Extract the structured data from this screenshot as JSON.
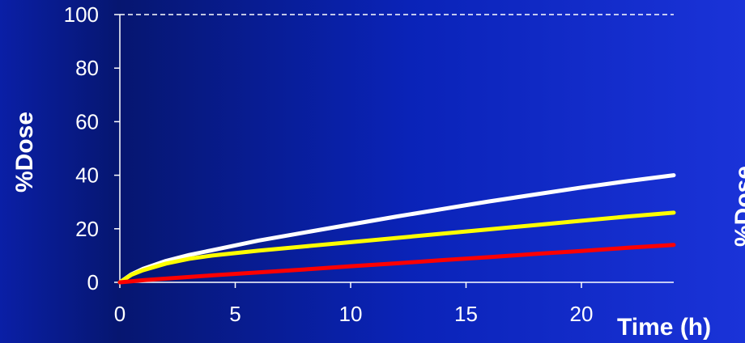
{
  "chart_data": {
    "type": "line",
    "title": "",
    "xlabel": "Time (h)",
    "ylabel": "%Dose",
    "ylim": [
      0,
      100
    ],
    "xlim": [
      0,
      24
    ],
    "xticks": [
      0,
      5,
      10,
      15,
      20
    ],
    "yticks": [
      0,
      20,
      40,
      60,
      80,
      100
    ],
    "reference_line": {
      "y": 100,
      "style": "dashed"
    },
    "grid": false,
    "legend": "none",
    "series": [
      {
        "color": "#ffffff",
        "x": [
          0,
          0.5,
          1,
          2,
          3,
          4,
          6,
          8,
          10,
          12,
          14,
          16,
          18,
          20,
          22,
          24
        ],
        "y": [
          0,
          3,
          5,
          8,
          10.2,
          12,
          15.6,
          18.6,
          21.6,
          24.6,
          27.4,
          30.2,
          32.8,
          35.4,
          37.8,
          40
        ]
      },
      {
        "color": "#ffff00",
        "x": [
          0,
          0.5,
          1,
          2,
          3,
          4,
          6,
          8,
          10,
          12,
          14,
          16,
          18,
          20,
          22,
          24
        ],
        "y": [
          0,
          2.8,
          4.5,
          7,
          8.8,
          10,
          11.8,
          13.4,
          15,
          16.6,
          18.2,
          19.8,
          21.4,
          23,
          24.6,
          26
        ]
      },
      {
        "color": "#ff0000",
        "x": [
          0,
          0.5,
          1,
          2,
          4,
          6,
          8,
          10,
          12,
          14,
          16,
          18,
          20,
          22,
          24
        ],
        "y": [
          0,
          0.4,
          0.8,
          1.4,
          2.6,
          3.7,
          4.8,
          6,
          7.1,
          8.3,
          9.4,
          10.6,
          11.7,
          12.9,
          14
        ]
      }
    ]
  }
}
